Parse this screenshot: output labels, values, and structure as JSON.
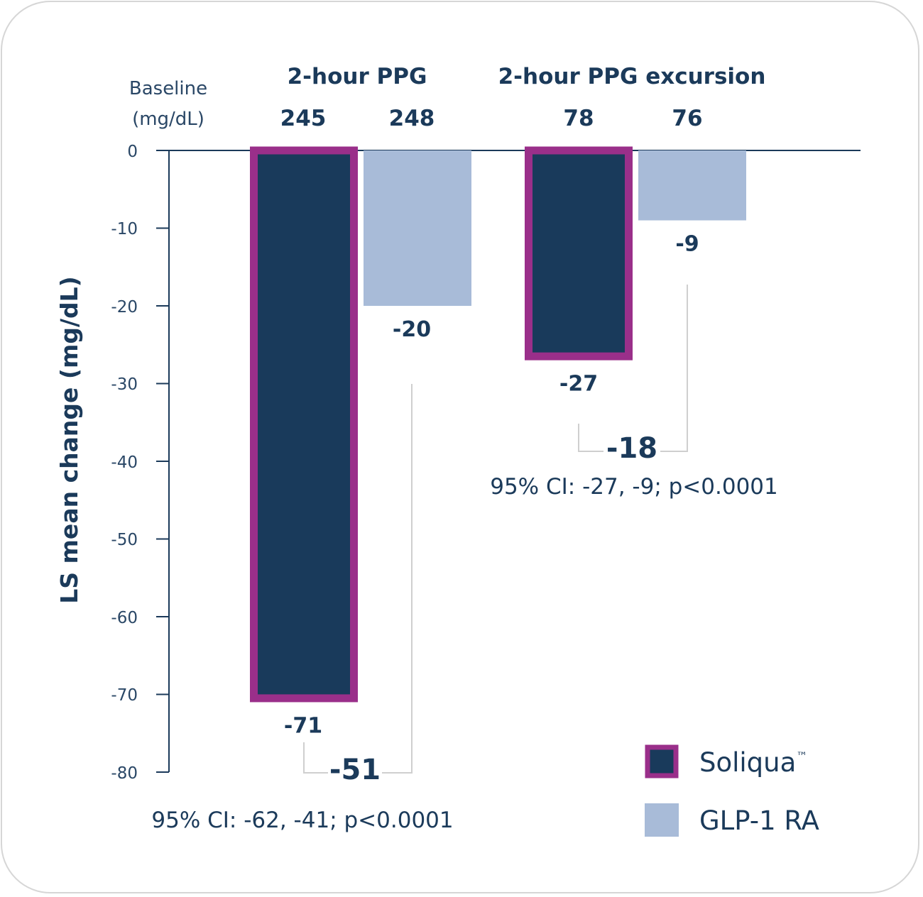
{
  "chart_data": {
    "type": "bar",
    "ylabel": "LS mean change (mg/dL)",
    "ylim": [
      -80,
      0
    ],
    "yticks": [
      "0",
      "-10",
      "-20",
      "-30",
      "-40",
      "-50",
      "-60",
      "-70",
      "-80"
    ],
    "baseline_label": [
      "Baseline",
      "(mg/dL)"
    ],
    "categories": [
      "2-hour PPG",
      "2-hour PPG excursion"
    ],
    "series": [
      {
        "name": "Soliqua",
        "name_mark": "™",
        "values": [
          -71,
          -27
        ],
        "value_labels": [
          "-71",
          "-27"
        ],
        "baselines": [
          "245",
          "78"
        ]
      },
      {
        "name": "GLP-1 RA",
        "values": [
          -20,
          -9
        ],
        "value_labels": [
          "-20",
          "-9"
        ],
        "baselines": [
          "248",
          "76"
        ]
      }
    ],
    "differences": [
      {
        "value": "-51",
        "ci": "95% CI: -62, -41; p<0.0001"
      },
      {
        "value": "-18",
        "ci": "95% CI: -27, -9; p<0.0001"
      }
    ],
    "colors": {
      "soliqua_fill": "#193a5b",
      "soliqua_border": "#9a2f8a",
      "glp1_fill": "#a8bbd8",
      "axis": "#1b3a5a"
    },
    "legend_position": "bottom-right",
    "grid": false
  }
}
